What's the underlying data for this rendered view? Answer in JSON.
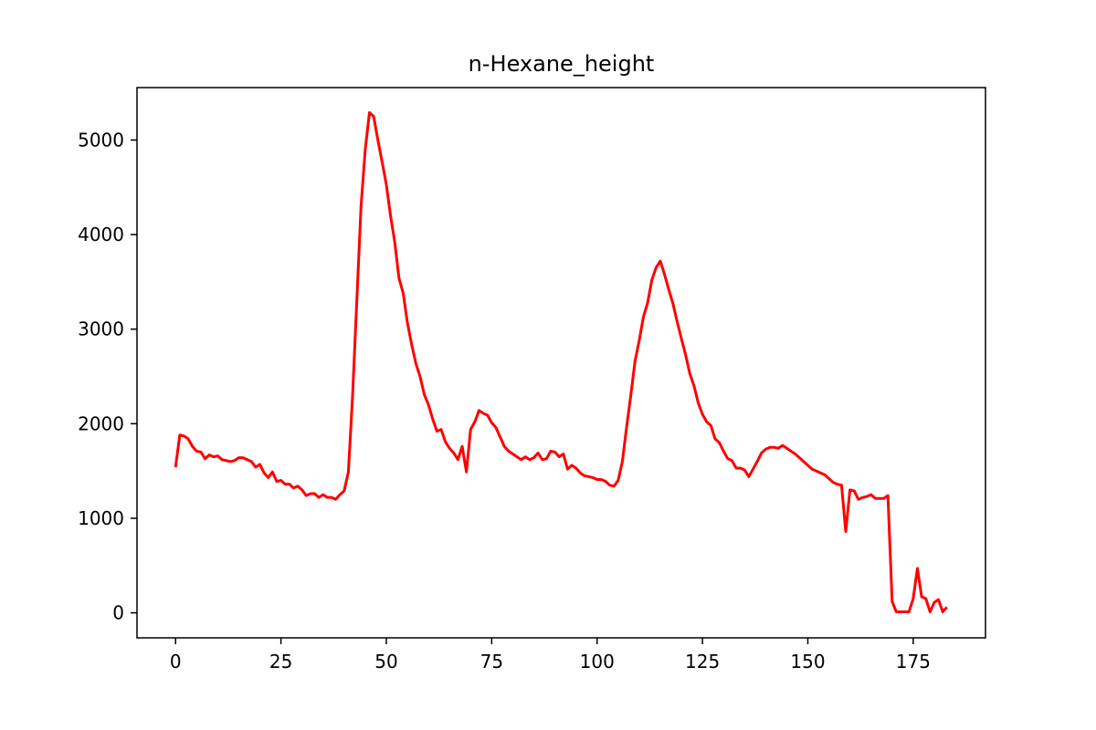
{
  "chart_data": {
    "type": "line",
    "title": "n-Hexane_height",
    "x": [
      0,
      1,
      2,
      3,
      4,
      5,
      6,
      7,
      8,
      9,
      10,
      11,
      12,
      13,
      14,
      15,
      16,
      17,
      18,
      19,
      20,
      21,
      22,
      23,
      24,
      25,
      26,
      27,
      28,
      29,
      30,
      31,
      32,
      33,
      34,
      35,
      36,
      37,
      38,
      39,
      40,
      41,
      42,
      43,
      44,
      45,
      46,
      47,
      48,
      49,
      50,
      51,
      52,
      53,
      54,
      55,
      56,
      57,
      58,
      59,
      60,
      61,
      62,
      63,
      64,
      65,
      66,
      67,
      68,
      69,
      70,
      71,
      72,
      73,
      74,
      75,
      76,
      77,
      78,
      79,
      80,
      81,
      82,
      83,
      84,
      85,
      86,
      87,
      88,
      89,
      90,
      91,
      92,
      93,
      94,
      95,
      96,
      97,
      98,
      99,
      100,
      101,
      102,
      103,
      104,
      105,
      106,
      107,
      108,
      109,
      110,
      111,
      112,
      113,
      114,
      115,
      116,
      117,
      118,
      119,
      120,
      121,
      122,
      123,
      124,
      125,
      126,
      127,
      128,
      129,
      130,
      131,
      132,
      133,
      134,
      135,
      136,
      137,
      138,
      139,
      140,
      141,
      142,
      143,
      144,
      145,
      146,
      147,
      148,
      149,
      150,
      151,
      152,
      153,
      154,
      155,
      156,
      157,
      158,
      159,
      160,
      161,
      162,
      163,
      164,
      165,
      166,
      167,
      168,
      169,
      170,
      171,
      172,
      173,
      174,
      175,
      176,
      177,
      178,
      179,
      180,
      181,
      182,
      183
    ],
    "series": [
      {
        "color": "#ff0000",
        "values": [
          1540,
          1880,
          1870,
          1840,
          1760,
          1710,
          1700,
          1630,
          1670,
          1650,
          1660,
          1620,
          1610,
          1600,
          1610,
          1640,
          1640,
          1620,
          1600,
          1540,
          1570,
          1480,
          1430,
          1490,
          1390,
          1400,
          1360,
          1360,
          1320,
          1340,
          1300,
          1240,
          1260,
          1260,
          1220,
          1250,
          1220,
          1220,
          1200,
          1250,
          1290,
          1490,
          2300,
          3300,
          4300,
          4900,
          5290,
          5250,
          5000,
          4770,
          4530,
          4200,
          3920,
          3540,
          3380,
          3070,
          2840,
          2640,
          2500,
          2310,
          2200,
          2050,
          1920,
          1940,
          1810,
          1740,
          1690,
          1620,
          1760,
          1490,
          1940,
          2020,
          2140,
          2110,
          2090,
          2010,
          1960,
          1860,
          1760,
          1710,
          1680,
          1650,
          1620,
          1650,
          1620,
          1640,
          1690,
          1620,
          1630,
          1710,
          1700,
          1650,
          1680,
          1520,
          1560,
          1530,
          1480,
          1450,
          1440,
          1430,
          1410,
          1410,
          1390,
          1350,
          1340,
          1400,
          1600,
          1960,
          2300,
          2660,
          2880,
          3130,
          3280,
          3520,
          3650,
          3720,
          3580,
          3420,
          3270,
          3080,
          2900,
          2730,
          2530,
          2400,
          2220,
          2100,
          2020,
          1980,
          1840,
          1800,
          1710,
          1630,
          1610,
          1530,
          1530,
          1510,
          1440,
          1520,
          1600,
          1690,
          1730,
          1750,
          1750,
          1740,
          1770,
          1740,
          1710,
          1680,
          1640,
          1600,
          1560,
          1520,
          1500,
          1480,
          1460,
          1420,
          1380,
          1360,
          1350,
          860,
          1300,
          1290,
          1200,
          1220,
          1230,
          1250,
          1210,
          1210,
          1210,
          1240,
          120,
          10,
          10,
          10,
          10,
          150,
          470,
          170,
          150,
          10,
          110,
          140,
          10,
          60
        ]
      }
    ],
    "xlim": [
      -9.15,
      192.15
    ],
    "xticks": [
      0,
      25,
      50,
      75,
      100,
      125,
      150,
      175
    ],
    "ylim": [
      -264.5,
      5554.5
    ],
    "yticks": [
      0,
      1000,
      2000,
      3000,
      4000,
      5000
    ],
    "grid": false
  }
}
